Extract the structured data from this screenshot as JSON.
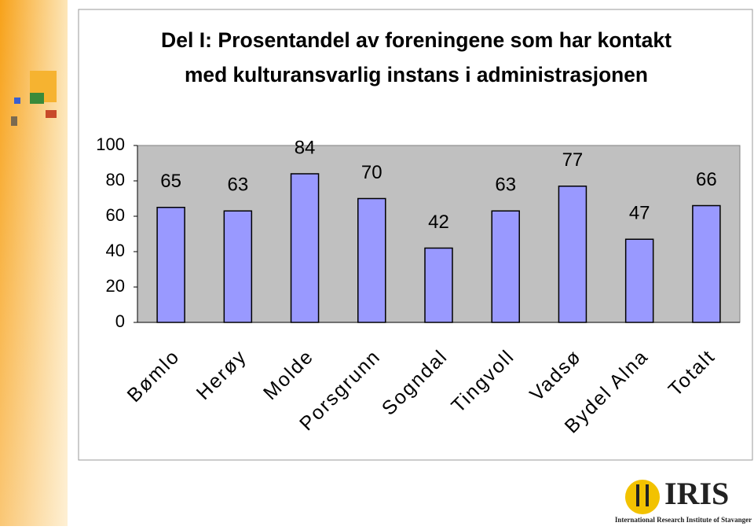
{
  "chart_data": {
    "type": "bar",
    "title": [
      "Del I: Prosentandel av foreningene som har kontakt",
      "med kulturansvarlig instans i administrasjonen"
    ],
    "categories": [
      "Bømlo",
      "Herøy",
      "Molde",
      "Porsgrunn",
      "Sogndal",
      "Tingvoll",
      "Vadsø",
      "Bydel Alna",
      "Totalt"
    ],
    "values": [
      65,
      63,
      84,
      70,
      42,
      63,
      77,
      47,
      66
    ],
    "color": "#9999ff",
    "ylim": [
      0,
      100
    ],
    "yticks": [
      0,
      20,
      40,
      60,
      80,
      100
    ],
    "grid": false
  },
  "logo": {
    "name": "IRIS",
    "subtitle": "International Research Institute of Stavanger"
  }
}
